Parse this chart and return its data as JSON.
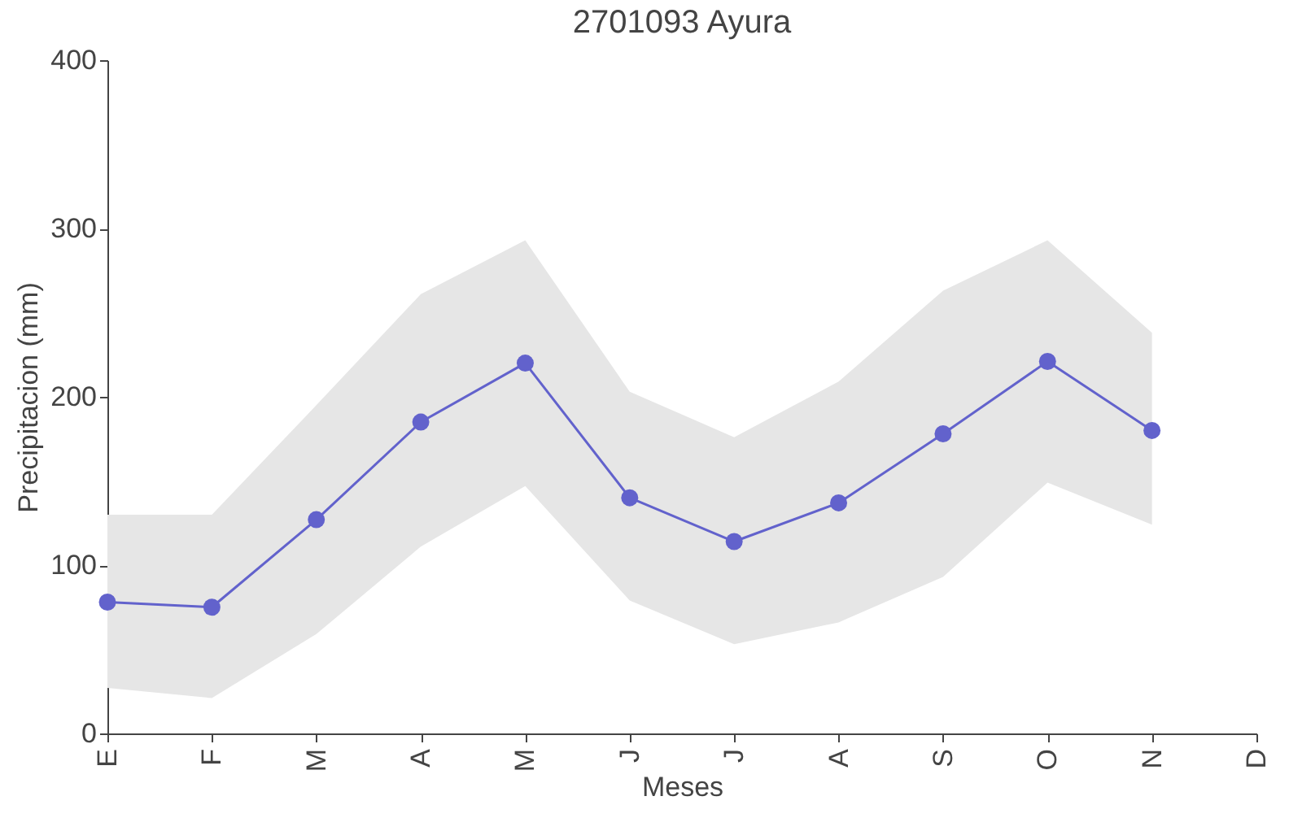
{
  "chart_data": {
    "type": "line",
    "title": "2701093 Ayura",
    "xlabel": "Meses",
    "ylabel": "Precipitacion (mm)",
    "categories": [
      "E",
      "F",
      "M",
      "A",
      "M",
      "J",
      "J",
      "A",
      "S",
      "O",
      "N",
      "D"
    ],
    "series": [
      {
        "color": "#6262cc",
        "values": [
          78,
          75,
          127,
          185,
          220,
          140,
          114,
          137,
          178,
          221,
          180,
          null
        ],
        "lower": [
          27,
          21,
          59,
          111,
          147,
          79,
          53,
          66,
          93,
          149,
          124,
          null
        ],
        "upper": [
          130,
          130,
          195,
          261,
          293,
          203,
          176,
          209,
          263,
          293,
          238,
          null
        ]
      }
    ],
    "ylim": [
      0,
      400
    ],
    "yticks": [
      0,
      100,
      200,
      300,
      400
    ],
    "marker": "circle",
    "line_style": "solid"
  }
}
